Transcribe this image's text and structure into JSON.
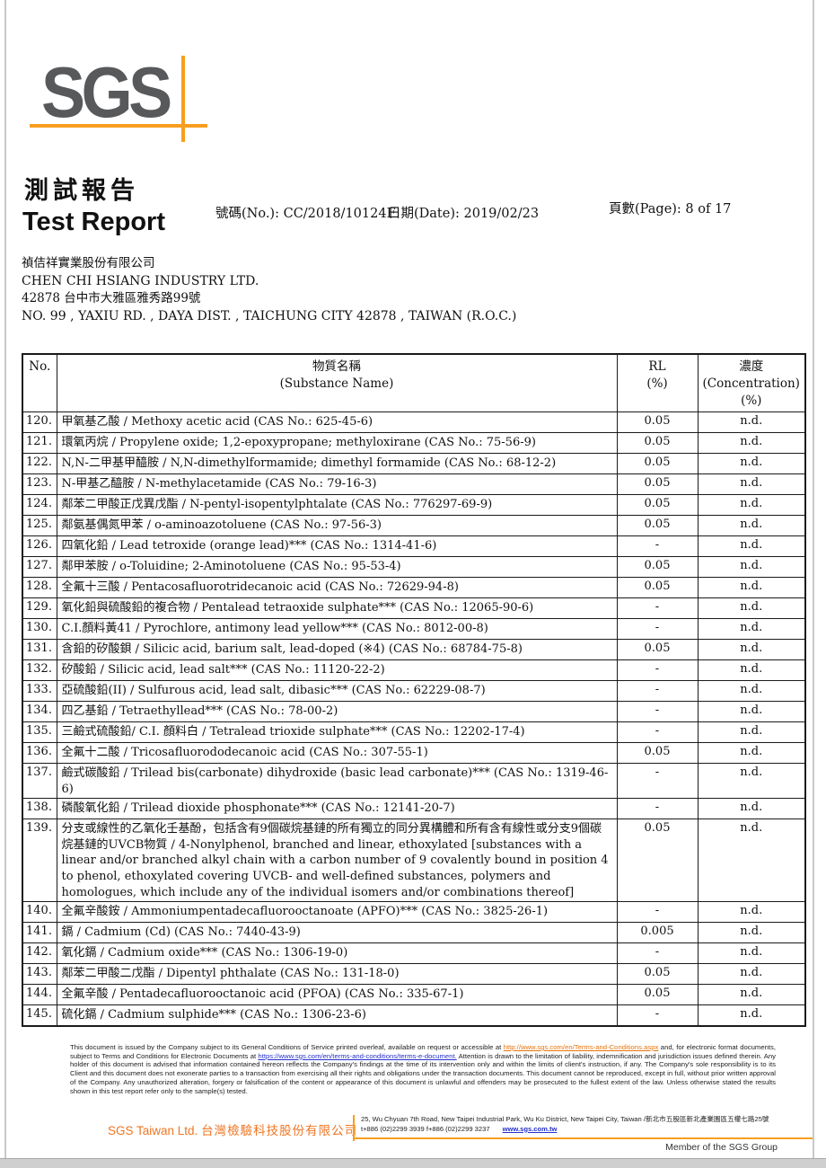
{
  "logo": {
    "text": "SGS",
    "gray": "#58595b",
    "accent": "#f79e1f"
  },
  "header": {
    "title_zh": "測試報告",
    "title_en": "Test Report",
    "no_label": "號碼(No.): ",
    "no_value": "CC/2018/10124F",
    "date_label": "日期(Date): ",
    "date_value": "2019/02/23",
    "page_label": "頁數(Page): ",
    "page_value": "8 of 17"
  },
  "client": {
    "name_zh": "禎佶祥實業股份有限公司",
    "name_en": "CHEN CHI HSIANG INDUSTRY LTD.",
    "address_zh": "42878  台中市大雅區雅秀路99號",
    "address_en": "NO. 99 , YAXIU RD. , DAYA DIST. , TAICHUNG CITY 42878 , TAIWAN (R.O.C.)"
  },
  "table": {
    "header": {
      "no": "No.",
      "substance_zh": "物質名稱",
      "substance_en": "(Substance Name)",
      "rl_1": "RL",
      "rl_2": "(%)",
      "conc_zh": "濃度",
      "conc_en": "(Concentration)",
      "conc_pct": "(%)"
    },
    "rows": [
      {
        "no": "120.",
        "name": "甲氧基乙酸 / Methoxy acetic acid (CAS No.: 625-45-6)",
        "rl": "0.05",
        "conc": "n.d."
      },
      {
        "no": "121.",
        "name": "環氧丙烷 / Propylene oxide; 1,2-epoxypropane; methyloxirane (CAS No.: 75-56-9)",
        "rl": "0.05",
        "conc": "n.d."
      },
      {
        "no": "122.",
        "name": "N,N-二甲基甲醯胺 / N,N-dimethylformamide; dimethyl formamide (CAS No.: 68-12-2)",
        "rl": "0.05",
        "conc": "n.d."
      },
      {
        "no": "123.",
        "name": "N-甲基乙醯胺 / N-methylacetamide (CAS No.: 79-16-3)",
        "rl": "0.05",
        "conc": "n.d."
      },
      {
        "no": "124.",
        "name": "鄰苯二甲酸正戊異戊酯 / N-pentyl-isopentylphtalate (CAS No.: 776297-69-9)",
        "rl": "0.05",
        "conc": "n.d."
      },
      {
        "no": "125.",
        "name": "鄰氨基偶氮甲苯 / o-aminoazotoluene (CAS No.: 97-56-3)",
        "rl": "0.05",
        "conc": "n.d."
      },
      {
        "no": "126.",
        "name": "四氧化鉛 / Lead tetroxide (orange lead)*** (CAS No.: 1314-41-6)",
        "rl": "-",
        "conc": "n.d."
      },
      {
        "no": "127.",
        "name": "鄰甲苯胺 / o-Toluidine; 2-Aminotoluene (CAS No.: 95-53-4)",
        "rl": "0.05",
        "conc": "n.d."
      },
      {
        "no": "128.",
        "name": "全氟十三酸 / Pentacosafluorotridecanoic acid (CAS No.: 72629-94-8)",
        "rl": "0.05",
        "conc": "n.d."
      },
      {
        "no": "129.",
        "name": "氧化鉛與硫酸鉛的複合物 / Pentalead tetraoxide sulphate*** (CAS No.: 12065-90-6)",
        "rl": "-",
        "conc": "n.d."
      },
      {
        "no": "130.",
        "name": "C.I.顏料黃41 / Pyrochlore, antimony lead yellow*** (CAS No.: 8012-00-8)",
        "rl": "-",
        "conc": "n.d."
      },
      {
        "no": "131.",
        "name": "含鉛的矽酸鋇 / Silicic acid, barium salt, lead-doped (※4) (CAS No.: 68784-75-8)",
        "rl": "0.05",
        "conc": "n.d."
      },
      {
        "no": "132.",
        "name": "矽酸鉛 / Silicic acid, lead salt*** (CAS No.: 11120-22-2)",
        "rl": "-",
        "conc": "n.d."
      },
      {
        "no": "133.",
        "name": "亞硫酸鉛(II) / Sulfurous acid, lead salt, dibasic*** (CAS No.: 62229-08-7)",
        "rl": "-",
        "conc": "n.d."
      },
      {
        "no": "134.",
        "name": "四乙基鉛 / Tetraethyllead*** (CAS No.: 78-00-2)",
        "rl": "-",
        "conc": "n.d."
      },
      {
        "no": "135.",
        "name": "三鹼式硫酸鉛/ C.I. 顏料白 / Tetralead trioxide sulphate*** (CAS No.: 12202-17-4)",
        "rl": "-",
        "conc": "n.d."
      },
      {
        "no": "136.",
        "name": "全氟十二酸 / Tricosafluorododecanoic acid (CAS No.: 307-55-1)",
        "rl": "0.05",
        "conc": "n.d."
      },
      {
        "no": "137.",
        "name": "鹼式碳酸鉛 / Trilead bis(carbonate) dihydroxide (basic lead carbonate)*** (CAS No.: 1319-46-6)",
        "rl": "-",
        "conc": "n.d."
      },
      {
        "no": "138.",
        "name": "磷酸氧化鉛 / Trilead dioxide phosphonate*** (CAS No.: 12141-20-7)",
        "rl": "-",
        "conc": "n.d."
      },
      {
        "no": "139.",
        "name": "分支或線性的乙氧化壬基酚，包括含有9個碳烷基鏈的所有獨立的同分異構體和所有含有線性或分支9個碳烷基鏈的UVCB物質 / 4-Nonylphenol, branched and linear, ethoxylated [substances with a linear and/or branched alkyl chain with a carbon number of 9 covalently bound in position 4 to phenol, ethoxylated covering UVCB- and well-defined substances, polymers and homologues, which include any of the individual isomers and/or combinations thereof]",
        "rl": "0.05",
        "conc": "n.d."
      },
      {
        "no": "140.",
        "name": "全氟辛酸銨 / Ammoniumpentadecafluorooctanoate (APFO)*** (CAS No.: 3825-26-1)",
        "rl": "-",
        "conc": "n.d."
      },
      {
        "no": "141.",
        "name": "鎘 / Cadmium (Cd) (CAS No.: 7440-43-9)",
        "rl": "0.005",
        "conc": "n.d."
      },
      {
        "no": "142.",
        "name": "氧化鎘 / Cadmium oxide*** (CAS No.: 1306-19-0)",
        "rl": "-",
        "conc": "n.d."
      },
      {
        "no": "143.",
        "name": "鄰苯二甲酸二戊酯 / Dipentyl phthalate (CAS No.: 131-18-0)",
        "rl": "0.05",
        "conc": "n.d."
      },
      {
        "no": "144.",
        "name": "全氟辛酸 / Pentadecafluorooctanoic acid (PFOA) (CAS No.: 335-67-1)",
        "rl": "0.05",
        "conc": "n.d."
      },
      {
        "no": "145.",
        "name": "硫化鎘 / Cadmium sulphide*** (CAS No.: 1306-23-6)",
        "rl": "-",
        "conc": "n.d."
      }
    ]
  },
  "disclaimer": {
    "seg1": "This document is issued by the Company subject to its General Conditions of Service printed overleaf, available on request or accessible at ",
    "link1": "http://www.sgs.com/en/Terms-and-Conditions.aspx",
    "seg2": " and, for electronic format documents, subject to Terms and Conditions for Electronic Documents at ",
    "link2": "https://www.sgs.com/en/terms-and-conditions/terms-e-document.",
    "seg3": " Attention is drawn to the limitation of liability, indemnification and jurisdiction issues defined therein. Any holder of this document is advised that information contained hereon reflects the Company's findings at the time of its intervention only and within the limits of client's instruction, if any. The Company's sole responsibility is to its Client and this document does not exonerate parties to a transaction from exercising all their rights and obligations under the transaction documents. This document cannot be reproduced, except in full, without prior written approval of the Company. Any unauthorized alteration, forgery or falsification of the content or appearance of this document is unlawful and offenders may be prosecuted to the fullest extent of the law. Unless otherwise stated the results shown in this test report refer only to the sample(s) tested."
  },
  "footer": {
    "company_en": "SGS Taiwan Ltd.",
    "company_zh": "台灣檢驗科技股份有限公司",
    "address": "25, Wu Chyuan 7th Road, New Taipei Industrial Park, Wu Ku District, New Taipei City, Taiwan /新北市五股區新北產業園區五權七路25號",
    "phone": "t+886 (02)2299 3939  f+886 (02)2299 3237",
    "website": "www.sgs.com.tw",
    "member": "Member of the SGS Group",
    "accent": "#f79e1f"
  }
}
